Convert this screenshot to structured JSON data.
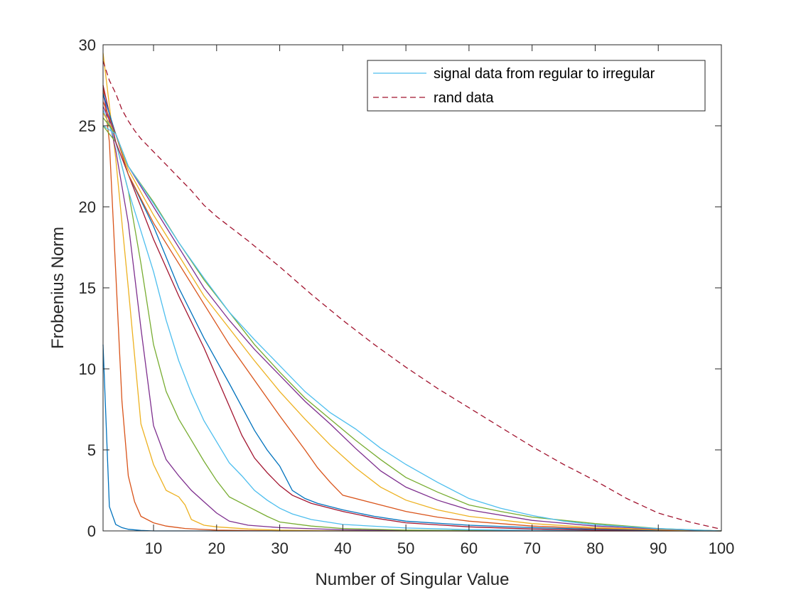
{
  "chart_data": {
    "type": "line",
    "title": "",
    "xlabel": "Number of Singular Value",
    "ylabel": "Frobenius Norm",
    "xlim": [
      2,
      100
    ],
    "ylim": [
      0,
      30
    ],
    "xticks": [
      10,
      20,
      30,
      40,
      50,
      60,
      70,
      80,
      90,
      100
    ],
    "yticks": [
      0,
      5,
      10,
      15,
      20,
      25,
      30
    ],
    "grid": false,
    "legend_position": "top-right",
    "legend": [
      {
        "label": "signal data from regular to irregular",
        "style": "solid",
        "color": "#4DBEEE"
      },
      {
        "label": "rand data",
        "style": "dashed",
        "color": "#A2142F"
      }
    ],
    "series": [
      {
        "color": "#0072BD",
        "style": "solid",
        "points": [
          [
            2,
            11.5
          ],
          [
            3,
            1.5
          ],
          [
            4,
            0.4
          ],
          [
            5,
            0.2
          ],
          [
            6,
            0.1
          ],
          [
            8,
            0.03
          ],
          [
            10,
            0
          ],
          [
            100,
            0
          ]
        ]
      },
      {
        "color": "#D95319",
        "style": "solid",
        "points": [
          [
            2,
            27.5
          ],
          [
            3,
            24
          ],
          [
            4,
            16
          ],
          [
            5,
            8
          ],
          [
            6,
            3.4
          ],
          [
            7,
            1.8
          ],
          [
            8,
            0.9
          ],
          [
            10,
            0.5
          ],
          [
            12,
            0.3
          ],
          [
            15,
            0.15
          ],
          [
            20,
            0.05
          ],
          [
            30,
            0
          ],
          [
            100,
            0
          ]
        ]
      },
      {
        "color": "#EDB120",
        "style": "solid",
        "points": [
          [
            2,
            29.5
          ],
          [
            4,
            23
          ],
          [
            6,
            15
          ],
          [
            8,
            6.6
          ],
          [
            10,
            4.1
          ],
          [
            12,
            2.5
          ],
          [
            14,
            2.1
          ],
          [
            15,
            1.6
          ],
          [
            16,
            0.7
          ],
          [
            18,
            0.35
          ],
          [
            20,
            0.25
          ],
          [
            25,
            0.12
          ],
          [
            30,
            0.05
          ],
          [
            40,
            0
          ],
          [
            100,
            0
          ]
        ]
      },
      {
        "color": "#7E2F8E",
        "style": "solid",
        "points": [
          [
            2,
            27
          ],
          [
            4,
            23.5
          ],
          [
            6,
            19
          ],
          [
            8,
            12.5
          ],
          [
            10,
            6.5
          ],
          [
            12,
            4.4
          ],
          [
            14,
            3.4
          ],
          [
            16,
            2.5
          ],
          [
            18,
            1.8
          ],
          [
            20,
            1.1
          ],
          [
            22,
            0.6
          ],
          [
            25,
            0.35
          ],
          [
            30,
            0.2
          ],
          [
            40,
            0.07
          ],
          [
            50,
            0.02
          ],
          [
            60,
            0
          ],
          [
            100,
            0
          ]
        ]
      },
      {
        "color": "#77AC30",
        "style": "solid",
        "points": [
          [
            2,
            25
          ],
          [
            4,
            24
          ],
          [
            6,
            21
          ],
          [
            8,
            16.5
          ],
          [
            10,
            11.5
          ],
          [
            12,
            8.6
          ],
          [
            14,
            6.9
          ],
          [
            16,
            5.6
          ],
          [
            18,
            4.3
          ],
          [
            20,
            3.1
          ],
          [
            22,
            2.1
          ],
          [
            25,
            1.5
          ],
          [
            28,
            0.9
          ],
          [
            30,
            0.55
          ],
          [
            35,
            0.3
          ],
          [
            40,
            0.15
          ],
          [
            50,
            0.05
          ],
          [
            60,
            0.02
          ],
          [
            100,
            0
          ]
        ]
      },
      {
        "color": "#4DBEEE",
        "style": "solid",
        "points": [
          [
            2,
            26
          ],
          [
            4,
            24
          ],
          [
            6,
            21
          ],
          [
            8,
            18.5
          ],
          [
            10,
            16
          ],
          [
            12,
            13
          ],
          [
            14,
            10.5
          ],
          [
            16,
            8.5
          ],
          [
            18,
            6.8
          ],
          [
            20,
            5.5
          ],
          [
            22,
            4.2
          ],
          [
            24,
            3.4
          ],
          [
            26,
            2.5
          ],
          [
            28,
            1.9
          ],
          [
            30,
            1.4
          ],
          [
            32,
            1.05
          ],
          [
            35,
            0.7
          ],
          [
            40,
            0.4
          ],
          [
            50,
            0.18
          ],
          [
            60,
            0.08
          ],
          [
            70,
            0.03
          ],
          [
            100,
            0
          ]
        ]
      },
      {
        "color": "#A2142F",
        "style": "solid",
        "points": [
          [
            2,
            27.5
          ],
          [
            4,
            24
          ],
          [
            6,
            22
          ],
          [
            10,
            18
          ],
          [
            14,
            14.5
          ],
          [
            18,
            11.3
          ],
          [
            20,
            9.5
          ],
          [
            22,
            7.7
          ],
          [
            24,
            5.9
          ],
          [
            26,
            4.5
          ],
          [
            28,
            3.6
          ],
          [
            30,
            2.8
          ],
          [
            32,
            2.2
          ],
          [
            35,
            1.7
          ],
          [
            40,
            1.2
          ],
          [
            45,
            0.8
          ],
          [
            50,
            0.5
          ],
          [
            60,
            0.25
          ],
          [
            70,
            0.12
          ],
          [
            80,
            0.05
          ],
          [
            90,
            0.02
          ],
          [
            100,
            0
          ]
        ]
      },
      {
        "color": "#0072BD",
        "style": "solid",
        "points": [
          [
            2,
            27
          ],
          [
            4,
            24.5
          ],
          [
            6,
            22
          ],
          [
            10,
            18.8
          ],
          [
            14,
            15
          ],
          [
            18,
            11.9
          ],
          [
            22,
            9.1
          ],
          [
            26,
            6.2
          ],
          [
            28,
            5.0
          ],
          [
            30,
            4.0
          ],
          [
            32,
            2.5
          ],
          [
            34,
            2.0
          ],
          [
            36,
            1.7
          ],
          [
            40,
            1.3
          ],
          [
            45,
            0.9
          ],
          [
            50,
            0.6
          ],
          [
            60,
            0.35
          ],
          [
            70,
            0.2
          ],
          [
            80,
            0.1
          ],
          [
            90,
            0.04
          ],
          [
            100,
            0
          ]
        ]
      },
      {
        "color": "#D95319",
        "style": "solid",
        "points": [
          [
            2,
            26.5
          ],
          [
            4,
            24.5
          ],
          [
            6,
            22
          ],
          [
            10,
            19
          ],
          [
            14,
            16.5
          ],
          [
            18,
            14
          ],
          [
            22,
            11.5
          ],
          [
            26,
            9.3
          ],
          [
            30,
            7.1
          ],
          [
            34,
            5.0
          ],
          [
            36,
            3.9
          ],
          [
            38,
            3.0
          ],
          [
            40,
            2.2
          ],
          [
            45,
            1.7
          ],
          [
            50,
            1.2
          ],
          [
            55,
            0.85
          ],
          [
            60,
            0.6
          ],
          [
            70,
            0.3
          ],
          [
            80,
            0.15
          ],
          [
            90,
            0.06
          ],
          [
            100,
            0
          ]
        ]
      },
      {
        "color": "#EDB120",
        "style": "solid",
        "points": [
          [
            2,
            25.8
          ],
          [
            4,
            24.5
          ],
          [
            6,
            22.3
          ],
          [
            10,
            19.5
          ],
          [
            14,
            17
          ],
          [
            18,
            14.5
          ],
          [
            22,
            12.5
          ],
          [
            26,
            10.5
          ],
          [
            30,
            8.6
          ],
          [
            34,
            6.9
          ],
          [
            38,
            5.3
          ],
          [
            42,
            3.9
          ],
          [
            46,
            2.7
          ],
          [
            50,
            1.9
          ],
          [
            55,
            1.3
          ],
          [
            60,
            0.9
          ],
          [
            70,
            0.45
          ],
          [
            80,
            0.2
          ],
          [
            90,
            0.08
          ],
          [
            100,
            0
          ]
        ]
      },
      {
        "color": "#7E2F8E",
        "style": "solid",
        "points": [
          [
            2,
            26.2
          ],
          [
            4,
            24.5
          ],
          [
            6,
            22.5
          ],
          [
            10,
            20
          ],
          [
            14,
            17.5
          ],
          [
            18,
            15
          ],
          [
            22,
            13
          ],
          [
            26,
            11.2
          ],
          [
            30,
            9.6
          ],
          [
            34,
            8.0
          ],
          [
            38,
            6.6
          ],
          [
            42,
            5.1
          ],
          [
            46,
            3.7
          ],
          [
            50,
            2.7
          ],
          [
            55,
            1.9
          ],
          [
            60,
            1.3
          ],
          [
            70,
            0.65
          ],
          [
            80,
            0.3
          ],
          [
            90,
            0.12
          ],
          [
            100,
            0
          ]
        ]
      },
      {
        "color": "#77AC30",
        "style": "solid",
        "points": [
          [
            2,
            25.5
          ],
          [
            4,
            24.5
          ],
          [
            6,
            22.5
          ],
          [
            10,
            20.3
          ],
          [
            14,
            17.8
          ],
          [
            18,
            15.5
          ],
          [
            22,
            13.5
          ],
          [
            26,
            11.5
          ],
          [
            30,
            9.8
          ],
          [
            34,
            8.2
          ],
          [
            38,
            6.9
          ],
          [
            42,
            5.6
          ],
          [
            46,
            4.4
          ],
          [
            50,
            3.3
          ],
          [
            55,
            2.4
          ],
          [
            60,
            1.6
          ],
          [
            65,
            1.2
          ],
          [
            70,
            0.85
          ],
          [
            80,
            0.45
          ],
          [
            90,
            0.15
          ],
          [
            100,
            0
          ]
        ]
      },
      {
        "color": "#4DBEEE",
        "style": "solid",
        "points": [
          [
            2,
            25
          ],
          [
            4,
            24.5
          ],
          [
            6,
            22.5
          ],
          [
            10,
            20.2
          ],
          [
            14,
            17.8
          ],
          [
            18,
            15.6
          ],
          [
            22,
            13.5
          ],
          [
            26,
            11.8
          ],
          [
            30,
            10.2
          ],
          [
            34,
            8.6
          ],
          [
            38,
            7.3
          ],
          [
            42,
            6.3
          ],
          [
            46,
            5.1
          ],
          [
            50,
            4.1
          ],
          [
            55,
            3.0
          ],
          [
            60,
            2.0
          ],
          [
            65,
            1.4
          ],
          [
            70,
            0.95
          ],
          [
            75,
            0.6
          ],
          [
            80,
            0.38
          ],
          [
            90,
            0.14
          ],
          [
            100,
            0
          ]
        ]
      },
      {
        "color": "#A2142F",
        "style": "dashed",
        "points": [
          [
            2,
            29
          ],
          [
            3,
            27.8
          ],
          [
            4,
            27
          ],
          [
            5,
            26
          ],
          [
            6,
            25.3
          ],
          [
            7,
            24.7
          ],
          [
            8,
            24.2
          ],
          [
            10,
            23.4
          ],
          [
            12,
            22.6
          ],
          [
            14,
            21.8
          ],
          [
            16,
            21
          ],
          [
            18,
            20.1
          ],
          [
            20,
            19.4
          ],
          [
            25,
            17.9
          ],
          [
            30,
            16.3
          ],
          [
            35,
            14.6
          ],
          [
            40,
            13
          ],
          [
            45,
            11.5
          ],
          [
            50,
            10.1
          ],
          [
            55,
            8.8
          ],
          [
            60,
            7.6
          ],
          [
            65,
            6.4
          ],
          [
            70,
            5.2
          ],
          [
            75,
            4.1
          ],
          [
            80,
            3.1
          ],
          [
            85,
            2.0
          ],
          [
            90,
            1.1
          ],
          [
            95,
            0.55
          ],
          [
            100,
            0.1
          ]
        ]
      }
    ]
  }
}
